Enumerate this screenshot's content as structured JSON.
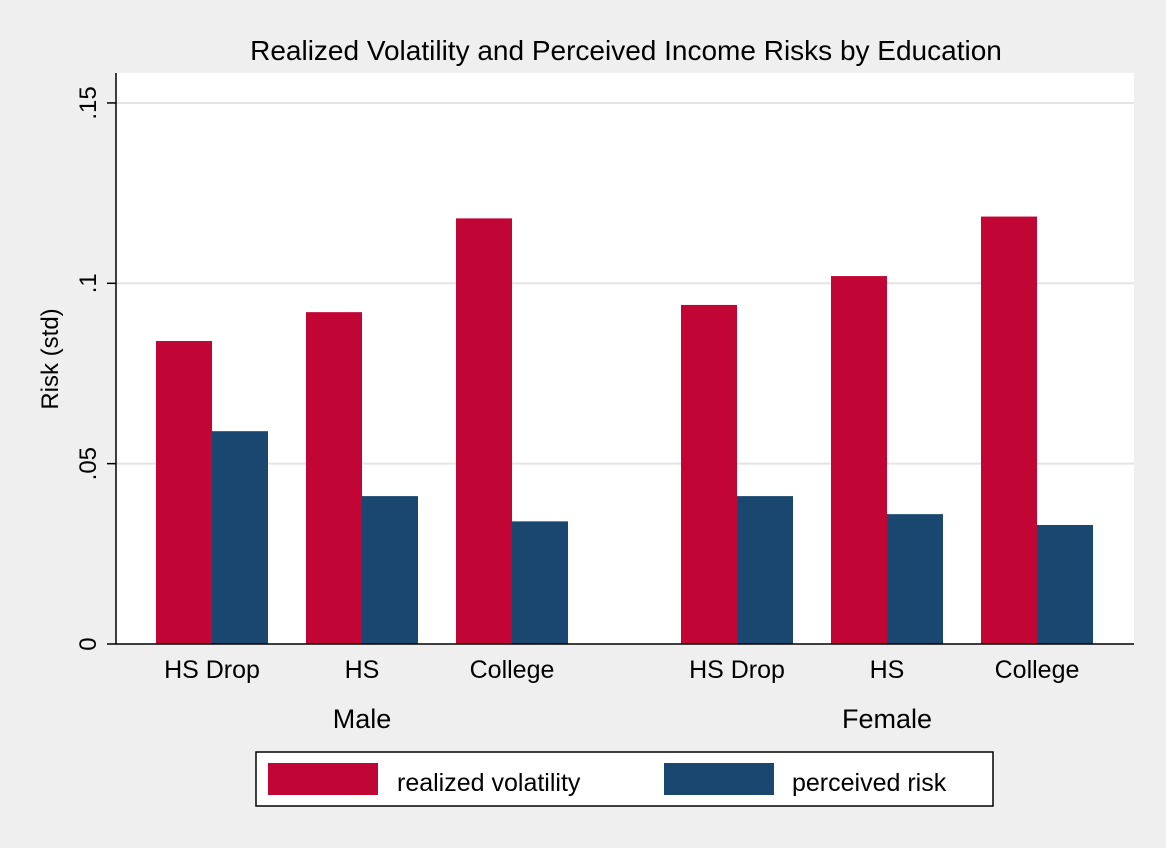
{
  "chart_data": {
    "type": "bar",
    "title": "Realized Volatility and Perceived Income Risks by Education",
    "ylabel": "Risk (std)",
    "xlabel": "",
    "ylim": [
      0,
      0.15
    ],
    "yticks": [
      {
        "value": 0,
        "label": "0"
      },
      {
        "value": 0.05,
        "label": ".05"
      },
      {
        "value": 0.1,
        "label": ".1"
      },
      {
        "value": 0.15,
        "label": ".15"
      }
    ],
    "grid": true,
    "legend_position": "bottom",
    "groups": [
      {
        "name": "Male",
        "categories": [
          "HS Drop",
          "HS",
          "College"
        ]
      },
      {
        "name": "Female",
        "categories": [
          "HS Drop",
          "HS",
          "College"
        ]
      }
    ],
    "series": [
      {
        "name": "realized volatility",
        "color": "#c10534",
        "values": [
          [
            0.084,
            0.092,
            0.118
          ],
          [
            0.094,
            0.102,
            0.1185
          ]
        ]
      },
      {
        "name": "perceived risk",
        "color": "#1a476f",
        "values": [
          [
            0.059,
            0.041,
            0.034
          ],
          [
            0.041,
            0.036,
            0.033
          ]
        ]
      }
    ]
  }
}
